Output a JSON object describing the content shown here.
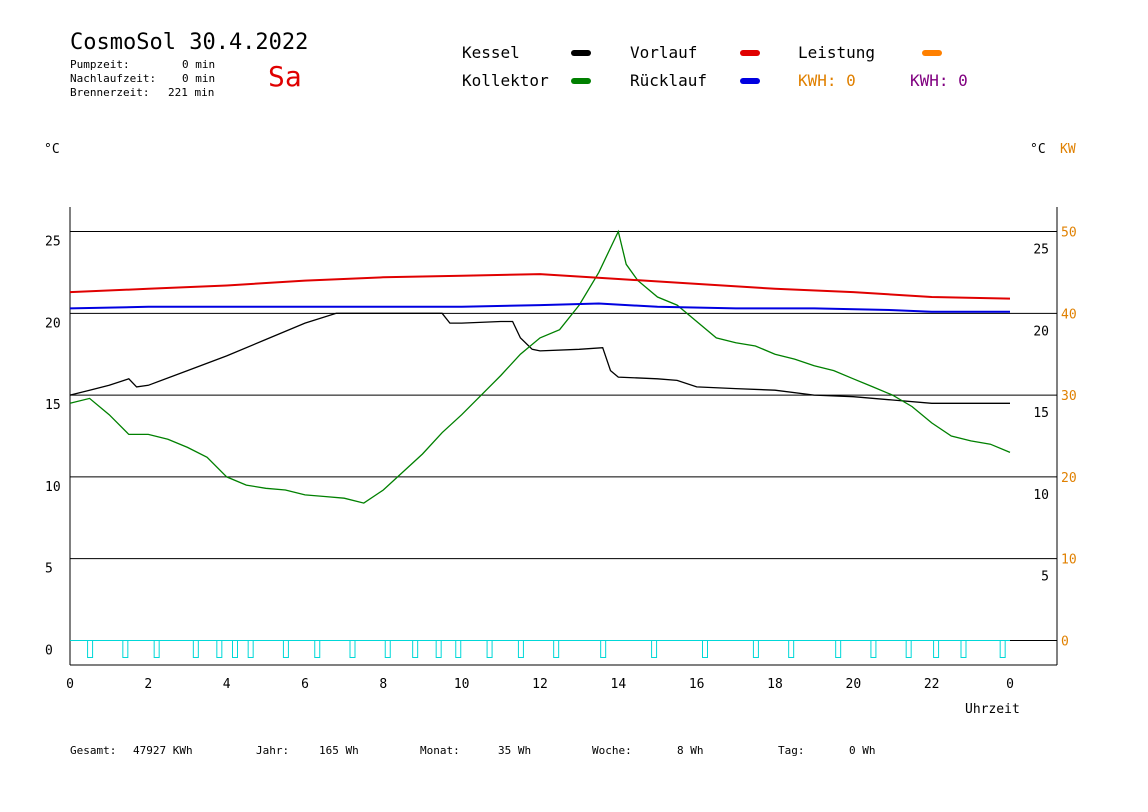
{
  "header": {
    "title": "CosmoSol 30.4.2022",
    "weekday": "Sa",
    "stats": [
      {
        "label": "Pumpzeit:",
        "value": "0 min"
      },
      {
        "label": "Nachlaufzeit:",
        "value": "0 min"
      },
      {
        "label": "Brennerzeit:",
        "value": "221 min"
      }
    ]
  },
  "legend": {
    "kessel": {
      "label": "Kessel",
      "color": "#000000"
    },
    "kollektor": {
      "label": "Kollektor",
      "color": "#008000"
    },
    "vorlauf": {
      "label": "Vorlauf",
      "color": "#e00000"
    },
    "ruecklauf": {
      "label": "Rücklauf",
      "color": "#0000e0"
    },
    "leistung": {
      "label": "Leistung",
      "color": "#ff8000"
    },
    "kwh1": {
      "label": "KWH: 0",
      "color": "#e08000"
    },
    "kwh2": {
      "label": "KWH: 0",
      "color": "#800080"
    }
  },
  "axes": {
    "left_unit": "°C",
    "right_unit_c": "°C",
    "right_unit_kw": "KW",
    "x_label": "Uhrzeit"
  },
  "footer": {
    "gesamt_label": "Gesamt:",
    "gesamt_value": "47927 KWh",
    "jahr_label": "Jahr:",
    "jahr_value": "165 Wh",
    "monat_label": "Monat:",
    "monat_value": "35 Wh",
    "woche_label": "Woche:",
    "woche_value": "8 Wh",
    "tag_label": "Tag:",
    "tag_value": "0 Wh"
  },
  "chart_data": {
    "type": "line",
    "xlim": [
      0,
      24
    ],
    "ylim_left": [
      -1.5,
      26.5
    ],
    "ylim_right_kw": [
      -3,
      53
    ],
    "x_ticks": [
      "0",
      "2",
      "4",
      "6",
      "8",
      "10",
      "12",
      "14",
      "16",
      "18",
      "20",
      "22",
      "0"
    ],
    "x_tick_values": [
      0,
      2,
      4,
      6,
      8,
      10,
      12,
      14,
      16,
      18,
      20,
      22,
      24
    ],
    "left_ticks": [
      25,
      20,
      15,
      10,
      5,
      0
    ],
    "right_c_ticks": [
      25,
      20,
      15,
      10,
      5
    ],
    "right_kw_ticks": [
      50,
      40,
      30,
      20,
      10,
      0
    ],
    "gridlines": [
      25,
      20,
      15,
      10,
      5,
      0
    ],
    "series": [
      {
        "name": "Kessel",
        "color": "#000000",
        "x": [
          0,
          0.5,
          1,
          1.5,
          1.7,
          2,
          3,
          4,
          5,
          6,
          6.8,
          7.2,
          8,
          9,
          9.5,
          9.7,
          10,
          11,
          11.3,
          11.5,
          11.8,
          12,
          13,
          13.6,
          13.8,
          14,
          15,
          15.5,
          16,
          17,
          18,
          19,
          20,
          21,
          22,
          23,
          24
        ],
        "y": [
          15.0,
          15.3,
          15.6,
          16.0,
          15.5,
          15.6,
          16.5,
          17.4,
          18.4,
          19.4,
          20.0,
          20.0,
          20.0,
          20.0,
          20.0,
          19.4,
          19.4,
          19.5,
          19.5,
          18.5,
          17.8,
          17.7,
          17.8,
          17.9,
          16.5,
          16.1,
          16.0,
          15.9,
          15.5,
          15.4,
          15.3,
          15.0,
          14.9,
          14.7,
          14.5,
          14.5,
          14.5
        ]
      },
      {
        "name": "Kollektor",
        "color": "#008000",
        "x": [
          0,
          0.5,
          1,
          1.5,
          2,
          2.5,
          3,
          3.5,
          4,
          4.5,
          5,
          5.5,
          6,
          6.5,
          7,
          7.5,
          8,
          8.5,
          9,
          9.5,
          10,
          10.5,
          11,
          11.5,
          12,
          12.5,
          13,
          13.5,
          14,
          14.2,
          14.5,
          15,
          15.5,
          16,
          16.5,
          17,
          17.5,
          18,
          18.5,
          19,
          19.5,
          20,
          20.5,
          21,
          21.5,
          22,
          22.5,
          23,
          23.5,
          24
        ],
        "y": [
          14.5,
          14.8,
          13.8,
          12.6,
          12.6,
          12.3,
          11.8,
          11.2,
          10.0,
          9.5,
          9.3,
          9.2,
          8.9,
          8.8,
          8.7,
          8.4,
          9.2,
          10.3,
          11.4,
          12.7,
          13.8,
          15.0,
          16.2,
          17.5,
          18.5,
          19.0,
          20.5,
          22.5,
          25.0,
          23.0,
          22.0,
          21.0,
          20.5,
          19.5,
          18.5,
          18.2,
          18.0,
          17.5,
          17.2,
          16.8,
          16.5,
          16.0,
          15.5,
          15.0,
          14.3,
          13.3,
          12.5,
          12.2,
          12.0,
          11.5
        ]
      },
      {
        "name": "Vorlauf",
        "color": "#e00000",
        "x": [
          0,
          2,
          4,
          6,
          8,
          10,
          12,
          14,
          16,
          18,
          20,
          22,
          24
        ],
        "y": [
          21.3,
          21.5,
          21.7,
          22.0,
          22.2,
          22.3,
          22.4,
          22.1,
          21.8,
          21.5,
          21.3,
          21.0,
          20.9
        ]
      },
      {
        "name": "Rücklauf",
        "color": "#0000e0",
        "x": [
          0,
          2,
          4,
          6,
          8,
          10,
          12,
          13.5,
          15,
          17,
          19,
          21,
          22,
          24
        ],
        "y": [
          20.3,
          20.4,
          20.4,
          20.4,
          20.4,
          20.4,
          20.5,
          20.6,
          20.4,
          20.3,
          20.3,
          20.2,
          20.1,
          20.1
        ]
      }
    ],
    "pump_pulses_x": [
      0.5,
      1.4,
      2.2,
      3.2,
      3.8,
      4.2,
      4.6,
      5.5,
      6.3,
      7.2,
      8.1,
      8.8,
      9.4,
      9.9,
      10.7,
      11.5,
      12.4,
      13.6,
      14.9,
      16.2,
      17.5,
      18.4,
      19.6,
      20.5,
      21.4,
      22.1,
      22.8,
      23.8
    ]
  }
}
